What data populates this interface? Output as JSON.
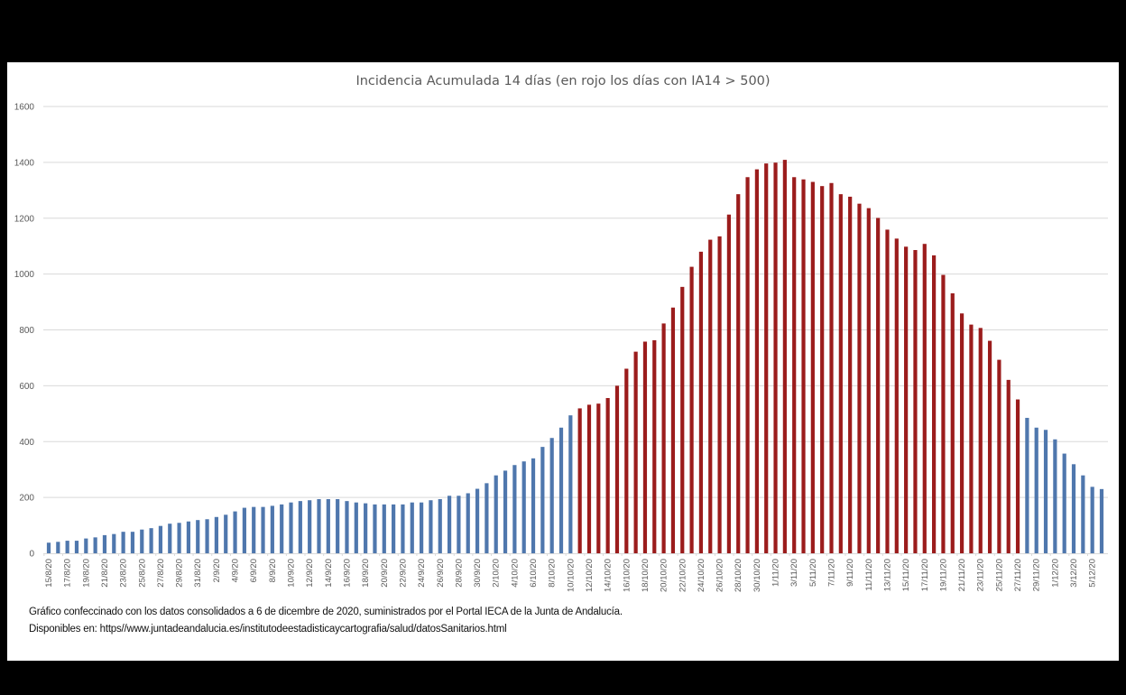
{
  "chart_data": {
    "type": "bar",
    "title": "Incidencia Acumulada 14 días (en rojo los días con IA14 > 500)",
    "xlabel": "",
    "ylabel": "",
    "ylim": [
      0,
      1600
    ],
    "yticks": [
      "0",
      "200",
      "400",
      "600",
      "800",
      "1000",
      "1200",
      "1400",
      "1600"
    ],
    "grid": true,
    "threshold": 500,
    "colors": {
      "normal": "#4f77ad",
      "above_threshold": "#9b1c1c",
      "grid": "#d9d9d9"
    },
    "categories": [
      "15/8/20",
      "16/8/20",
      "17/8/20",
      "18/8/20",
      "19/8/20",
      "20/8/20",
      "21/8/20",
      "22/8/20",
      "23/8/20",
      "24/8/20",
      "25/8/20",
      "26/8/20",
      "27/8/20",
      "28/8/20",
      "29/8/20",
      "30/8/20",
      "31/8/20",
      "1/9/20",
      "2/9/20",
      "3/9/20",
      "4/9/20",
      "5/9/20",
      "6/9/20",
      "7/9/20",
      "8/9/20",
      "9/9/20",
      "10/9/20",
      "11/9/20",
      "12/9/20",
      "13/9/20",
      "14/9/20",
      "15/9/20",
      "16/9/20",
      "17/9/20",
      "18/9/20",
      "19/9/20",
      "20/9/20",
      "21/9/20",
      "22/9/20",
      "23/9/20",
      "24/9/20",
      "25/9/20",
      "26/9/20",
      "27/9/20",
      "28/9/20",
      "29/9/20",
      "30/9/20",
      "1/10/20",
      "2/10/20",
      "3/10/20",
      "4/10/20",
      "5/10/20",
      "6/10/20",
      "7/10/20",
      "8/10/20",
      "9/10/20",
      "10/10/20",
      "11/10/20",
      "12/10/20",
      "13/10/20",
      "14/10/20",
      "15/10/20",
      "16/10/20",
      "17/10/20",
      "18/10/20",
      "19/10/20",
      "20/10/20",
      "21/10/20",
      "22/10/20",
      "23/10/20",
      "24/10/20",
      "25/10/20",
      "26/10/20",
      "27/10/20",
      "28/10/20",
      "29/10/20",
      "30/10/20",
      "31/10/20",
      "1/11/20",
      "2/11/20",
      "3/11/20",
      "4/11/20",
      "5/11/20",
      "6/11/20",
      "7/11/20",
      "8/11/20",
      "9/11/20",
      "10/11/20",
      "11/11/20",
      "12/11/20",
      "13/11/20",
      "14/11/20",
      "15/11/20",
      "16/11/20",
      "17/11/20",
      "18/11/20",
      "19/11/20",
      "20/11/20",
      "21/11/20",
      "22/11/20",
      "23/11/20",
      "24/11/20",
      "25/11/20",
      "26/11/20",
      "27/11/20",
      "28/11/20",
      "29/11/20",
      "30/11/20",
      "1/12/20",
      "2/12/20",
      "3/12/20",
      "4/12/20",
      "5/12/20",
      "6/12/20"
    ],
    "tick_labels": [
      "15/8/20",
      "17/8/20",
      "19/8/20",
      "21/8/20",
      "23/8/20",
      "25/8/20",
      "27/8/20",
      "29/8/20",
      "31/8/20",
      "2/9/20",
      "4/9/20",
      "6/9/20",
      "8/9/20",
      "10/9/20",
      "12/9/20",
      "14/9/20",
      "16/9/20",
      "18/9/20",
      "20/9/20",
      "22/9/20",
      "24/9/20",
      "26/9/20",
      "28/9/20",
      "30/9/20",
      "2/10/20",
      "4/10/20",
      "6/10/20",
      "8/10/20",
      "10/10/20",
      "12/10/20",
      "14/10/20",
      "16/10/20",
      "18/10/20",
      "20/10/20",
      "22/10/20",
      "24/10/20",
      "26/10/20",
      "28/10/20",
      "30/10/20",
      "1/11/20",
      "3/11/20",
      "5/11/20",
      "7/11/20",
      "9/11/20",
      "11/11/20",
      "13/11/20",
      "15/11/20",
      "17/11/20",
      "19/11/20",
      "21/11/20",
      "23/11/20",
      "25/11/20",
      "27/11/20",
      "29/11/20",
      "1/12/20",
      "3/12/20",
      "5/12/20"
    ],
    "values": [
      38,
      41,
      45,
      45,
      53,
      57,
      65,
      69,
      77,
      77,
      85,
      90,
      98,
      106,
      109,
      114,
      119,
      122,
      130,
      138,
      150,
      163,
      166,
      166,
      170,
      175,
      182,
      187,
      190,
      194,
      194,
      194,
      187,
      182,
      179,
      175,
      175,
      175,
      175,
      182,
      182,
      190,
      194,
      206,
      206,
      215,
      231,
      251,
      279,
      296,
      316,
      329,
      340,
      381,
      413,
      450,
      494,
      519,
      532,
      536,
      556,
      600,
      661,
      722,
      758,
      763,
      823,
      880,
      954,
      1026,
      1080,
      1123,
      1135,
      1213,
      1286,
      1347,
      1375,
      1396,
      1399,
      1409,
      1347,
      1339,
      1330,
      1315,
      1326,
      1286,
      1277,
      1252,
      1236,
      1201,
      1159,
      1127,
      1098,
      1086,
      1108,
      1067,
      997,
      931,
      859,
      819,
      807,
      761,
      693,
      621,
      551,
      485,
      450,
      442,
      408,
      357,
      319,
      279,
      238,
      230
    ]
  },
  "footer": {
    "line1": "Gráfico confeccinado con los datos consolidados a 6 de dicembre de 2020, suministrados por el Portal IECA de la Junta de Andalucía.",
    "line2": "Disponibles en: https//www.juntadeandalucia.es/institutodeestadisticaycartografia/salud/datosSanitarios.html"
  }
}
